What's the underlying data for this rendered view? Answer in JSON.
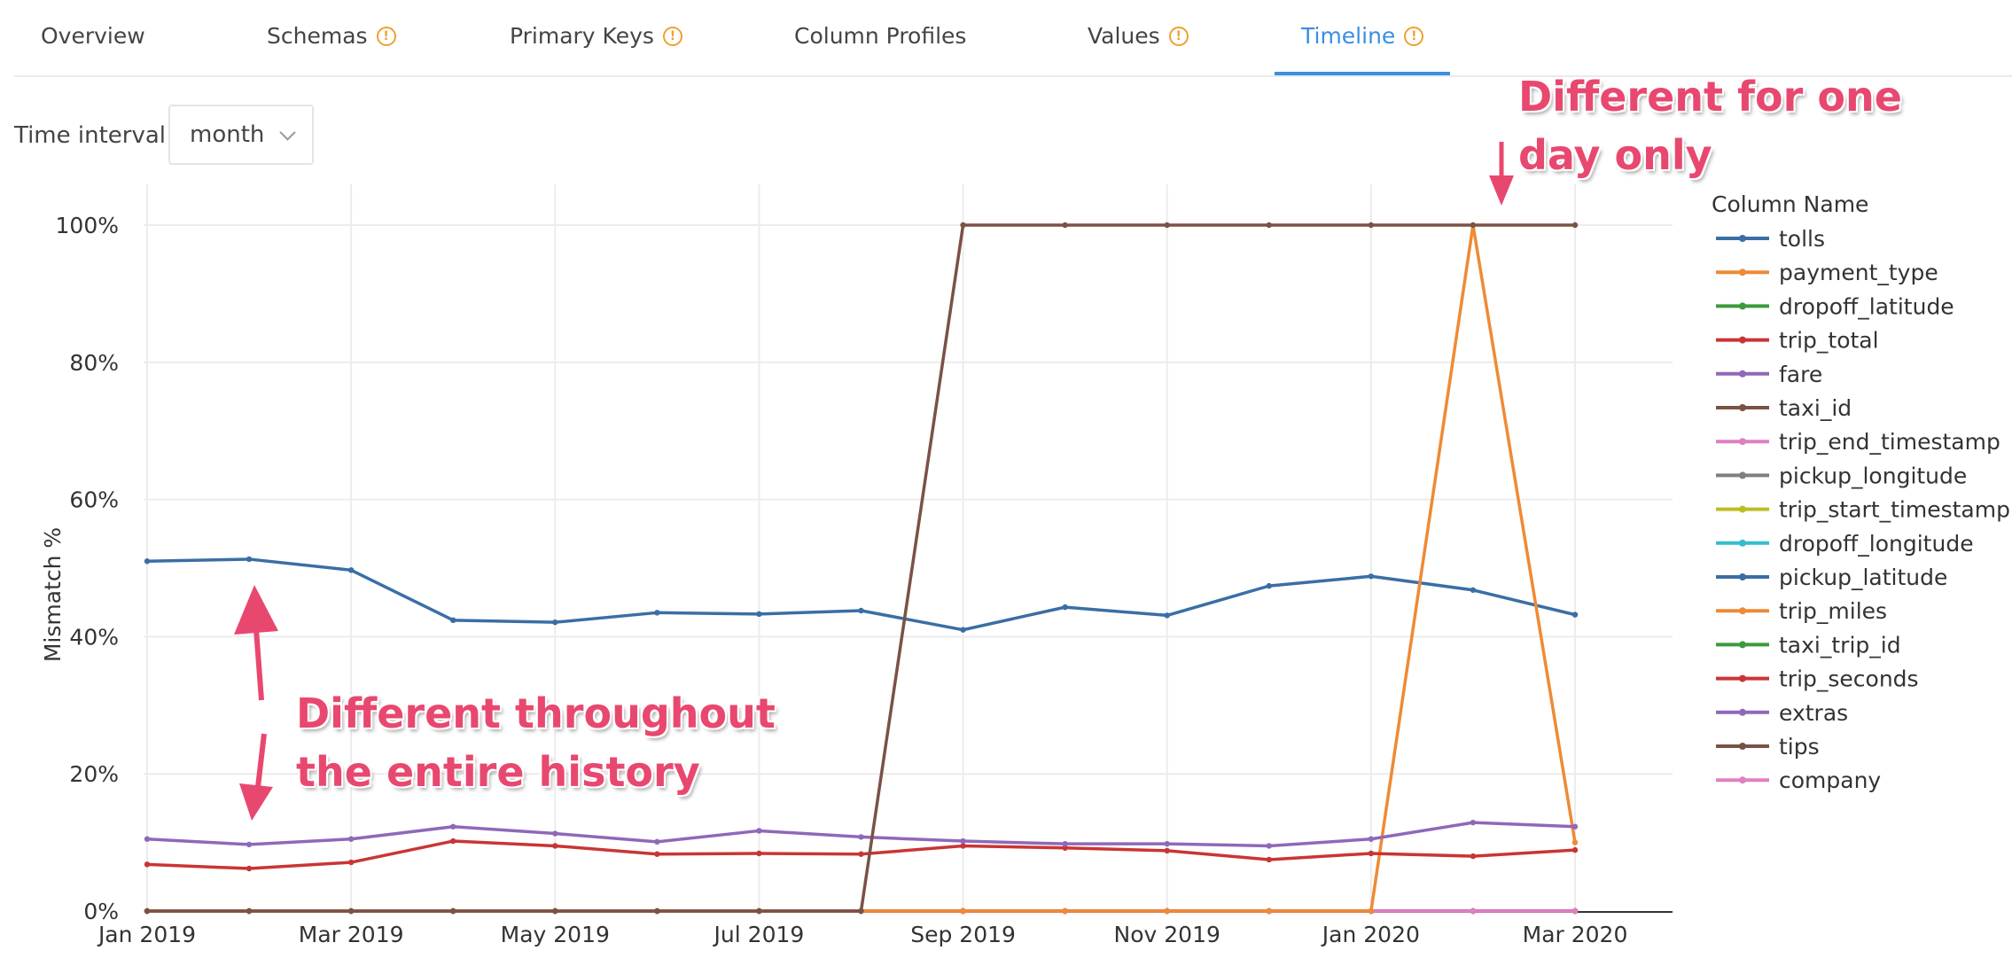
{
  "tabs": [
    {
      "label": "Overview",
      "warning": false
    },
    {
      "label": "Schemas",
      "warning": true
    },
    {
      "label": "Primary Keys",
      "warning": true
    },
    {
      "label": "Column Profiles",
      "warning": false
    },
    {
      "label": "Values",
      "warning": true
    },
    {
      "label": "Timeline",
      "warning": true,
      "active": true
    }
  ],
  "time_interval": {
    "label": "Time interval",
    "value": "month"
  },
  "annotations": {
    "top": "Different for one day only",
    "bottom": "Different throughout the entire history"
  },
  "chart_data": {
    "type": "line",
    "ylabel": "Mismatch %",
    "ylim": [
      0,
      100
    ],
    "yticks": [
      "0%",
      "20%",
      "40%",
      "60%",
      "80%",
      "100%"
    ],
    "x": [
      "2019-01",
      "2019-02",
      "2019-03",
      "2019-04",
      "2019-05",
      "2019-06",
      "2019-07",
      "2019-08",
      "2019-09",
      "2019-10",
      "2019-11",
      "2019-12",
      "2020-01",
      "2020-02",
      "2020-03"
    ],
    "xtick_labels": [
      "Jan 2019",
      "Mar 2019",
      "May 2019",
      "Jul 2019",
      "Sep 2019",
      "Nov 2019",
      "Jan 2020",
      "Mar 2020"
    ],
    "legend_title": "Column Name",
    "series": [
      {
        "name": "tolls",
        "color": "#3a6ea5",
        "values": [
          51,
          51.3,
          49.7,
          42.4,
          42.1,
          43.5,
          43.3,
          43.8,
          41,
          44.3,
          43.1,
          47.4,
          48.8,
          46.8,
          43.2
        ]
      },
      {
        "name": "payment_type",
        "color": "#ef8a35",
        "values": [
          0,
          0,
          0,
          0,
          0,
          0,
          0,
          0,
          0,
          0,
          0,
          0,
          0,
          100,
          10
        ]
      },
      {
        "name": "dropoff_latitude",
        "color": "#3c9a3c",
        "values": [
          0,
          0,
          0,
          0,
          0,
          0,
          0,
          0,
          0,
          0,
          0,
          0,
          0,
          0,
          0
        ]
      },
      {
        "name": "trip_total",
        "color": "#c93535",
        "values": [
          6.8,
          6.2,
          7.1,
          10.2,
          9.5,
          8.3,
          8.4,
          8.3,
          9.5,
          9.2,
          8.8,
          7.5,
          8.4,
          8.0,
          8.9
        ]
      },
      {
        "name": "fare",
        "color": "#8f68b8",
        "values": [
          10.5,
          9.7,
          10.5,
          12.3,
          11.3,
          10.1,
          11.7,
          10.8,
          10.2,
          9.8,
          9.8,
          9.5,
          10.5,
          12.9,
          12.3
        ]
      },
      {
        "name": "taxi_id",
        "color": "#7a5245",
        "values": [
          0,
          0,
          0,
          0,
          0,
          0,
          0,
          0,
          100,
          100,
          100,
          100,
          100,
          100,
          100
        ]
      },
      {
        "name": "trip_end_timestamp",
        "color": "#e07fc2",
        "values": [
          0,
          0,
          0,
          0,
          0,
          0,
          0,
          0,
          0,
          0,
          0,
          0,
          0,
          0,
          0
        ]
      },
      {
        "name": "pickup_longitude",
        "color": "#7f7f7f",
        "values": [
          0,
          0,
          0,
          0,
          0,
          0,
          0,
          0,
          0,
          0,
          0,
          0,
          0,
          0,
          0
        ]
      },
      {
        "name": "trip_start_timestamp",
        "color": "#bcbd22",
        "values": [
          0,
          0,
          0,
          0,
          0,
          0,
          0,
          0,
          0,
          0,
          0,
          0,
          0,
          0,
          0
        ]
      },
      {
        "name": "dropoff_longitude",
        "color": "#36bccd",
        "values": [
          0,
          0,
          0,
          0,
          0,
          0,
          0,
          0,
          0,
          0,
          0,
          0,
          0,
          0,
          0
        ]
      },
      {
        "name": "pickup_latitude",
        "color": "#3a6ea5",
        "values": [
          0,
          0,
          0,
          0,
          0,
          0,
          0,
          0,
          0,
          0,
          0,
          0,
          0,
          0,
          0
        ]
      },
      {
        "name": "trip_miles",
        "color": "#ef8a35",
        "values": [
          0,
          0,
          0,
          0,
          0,
          0,
          0,
          0,
          0,
          0,
          0,
          0,
          0,
          0,
          0
        ]
      },
      {
        "name": "taxi_trip_id",
        "color": "#3c9a3c",
        "values": [
          0,
          0,
          0,
          0,
          0,
          0,
          0,
          0,
          0,
          0,
          0,
          0,
          0,
          0,
          0
        ]
      },
      {
        "name": "trip_seconds",
        "color": "#c93535",
        "values": [
          0,
          0,
          0,
          0,
          0,
          0,
          0,
          0,
          0,
          0,
          0,
          0,
          0,
          0,
          0
        ]
      },
      {
        "name": "extras",
        "color": "#8f68b8",
        "values": [
          0,
          0,
          0,
          0,
          0,
          0,
          0,
          0,
          0,
          0,
          0,
          0,
          0,
          0,
          0
        ]
      },
      {
        "name": "tips",
        "color": "#7a5245",
        "values": [
          0,
          0,
          0,
          0,
          0,
          0,
          0,
          0,
          0,
          0,
          0,
          0,
          0,
          0,
          0
        ]
      },
      {
        "name": "company",
        "color": "#e07fc2",
        "values": [
          0,
          0,
          0,
          0,
          0,
          0,
          0,
          0,
          0,
          0,
          0,
          0,
          0,
          0,
          0
        ]
      }
    ]
  }
}
